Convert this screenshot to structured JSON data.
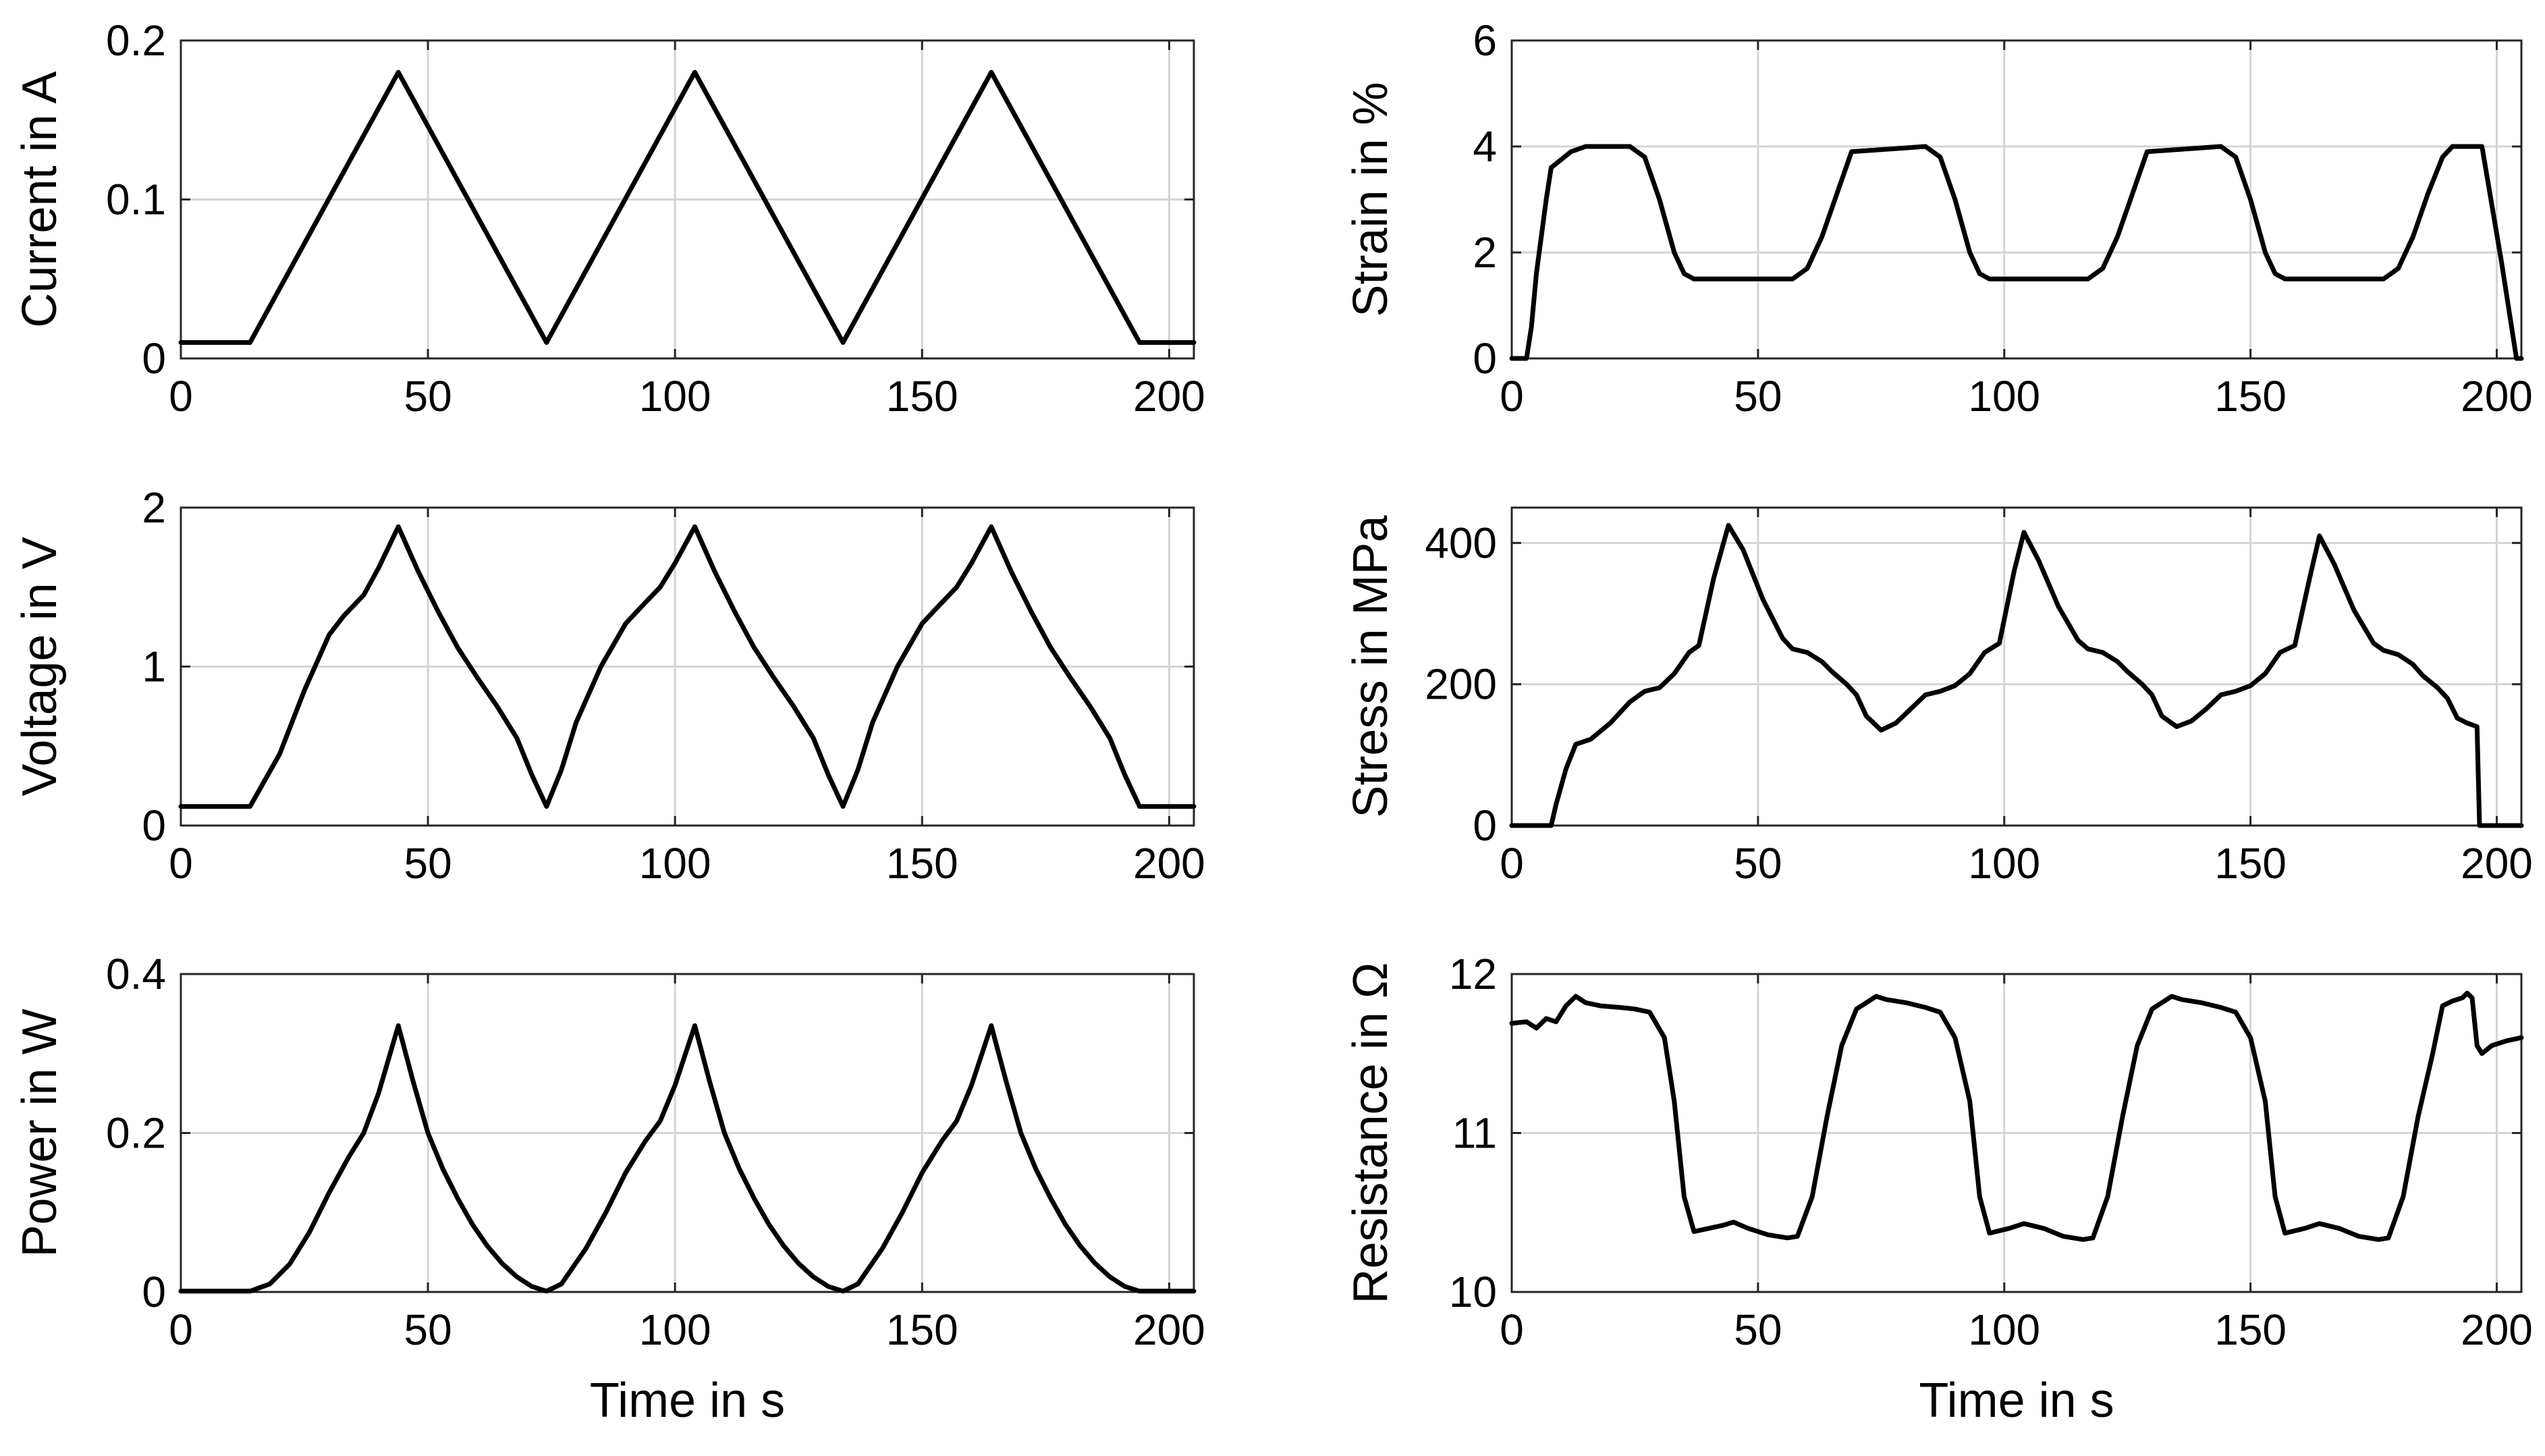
{
  "chart_data": [
    {
      "type": "line",
      "xlabel": "",
      "ylabel": "Current in A",
      "xlim": [
        0,
        205
      ],
      "ylim": [
        0,
        0.2
      ],
      "xticks": [
        0,
        50,
        100,
        150,
        200
      ],
      "yticks": [
        0,
        0.1,
        0.2
      ],
      "xtick_labels": [
        "0",
        "50",
        "100",
        "150",
        "200"
      ],
      "ytick_labels": [
        "0",
        "0.1",
        "0.2"
      ],
      "grid": true,
      "series": [
        {
          "name": "Current",
          "x": [
            0,
            14,
            44,
            74,
            104,
            134,
            164,
            194,
            205
          ],
          "y": [
            0.01,
            0.01,
            0.18,
            0.01,
            0.18,
            0.01,
            0.18,
            0.01,
            0.01
          ]
        }
      ]
    },
    {
      "type": "line",
      "xlabel": "",
      "ylabel": "Strain in %",
      "xlim": [
        0,
        205
      ],
      "ylim": [
        0,
        6
      ],
      "xticks": [
        0,
        50,
        100,
        150,
        200
      ],
      "yticks": [
        0,
        2,
        4,
        6
      ],
      "xtick_labels": [
        "0",
        "50",
        "100",
        "150",
        "200"
      ],
      "ytick_labels": [
        "0",
        "2",
        "4",
        "6"
      ],
      "grid": true,
      "series": [
        {
          "name": "Strain",
          "x": [
            0,
            3,
            4,
            5,
            7,
            8,
            12,
            15,
            24,
            27,
            30,
            33,
            35,
            37,
            57,
            60,
            63,
            66,
            69,
            84,
            87,
            90,
            93,
            95,
            97,
            117,
            120,
            123,
            126,
            129,
            144,
            147,
            150,
            153,
            155,
            157,
            177,
            180,
            183,
            186,
            189,
            191,
            195,
            197,
            201,
            204,
            205
          ],
          "y": [
            0,
            0,
            0.6,
            1.6,
            3.0,
            3.6,
            3.9,
            4.0,
            4.0,
            3.8,
            3.0,
            2.0,
            1.6,
            1.5,
            1.5,
            1.7,
            2.3,
            3.1,
            3.9,
            4.0,
            3.8,
            3.0,
            2.0,
            1.6,
            1.5,
            1.5,
            1.7,
            2.3,
            3.1,
            3.9,
            4.0,
            3.8,
            3.0,
            2.0,
            1.6,
            1.5,
            1.5,
            1.7,
            2.3,
            3.1,
            3.8,
            4.0,
            4.0,
            4.0,
            1.8,
            0,
            0
          ]
        }
      ]
    },
    {
      "type": "line",
      "xlabel": "",
      "ylabel": "Voltage in V",
      "xlim": [
        0,
        205
      ],
      "ylim": [
        0,
        2
      ],
      "xticks": [
        0,
        50,
        100,
        150,
        200
      ],
      "yticks": [
        0,
        1,
        2
      ],
      "xtick_labels": [
        "0",
        "50",
        "100",
        "150",
        "200"
      ],
      "ytick_labels": [
        "0",
        "1",
        "2"
      ],
      "grid": true,
      "series": [
        {
          "name": "Voltage",
          "x": [
            0,
            14,
            20,
            25,
            30,
            33,
            37,
            40,
            44,
            48,
            52,
            56,
            60,
            64,
            68,
            71,
            74,
            77,
            80,
            85,
            90,
            93,
            97,
            100,
            104,
            108,
            112,
            116,
            120,
            124,
            128,
            131,
            134,
            137,
            140,
            145,
            150,
            153,
            157,
            160,
            164,
            168,
            172,
            176,
            180,
            184,
            188,
            191,
            194,
            205
          ],
          "y": [
            0.12,
            0.12,
            0.45,
            0.85,
            1.2,
            1.32,
            1.45,
            1.62,
            1.88,
            1.6,
            1.35,
            1.12,
            0.93,
            0.75,
            0.55,
            0.32,
            0.12,
            0.35,
            0.65,
            1.0,
            1.27,
            1.37,
            1.5,
            1.65,
            1.88,
            1.6,
            1.35,
            1.12,
            0.93,
            0.75,
            0.55,
            0.32,
            0.12,
            0.35,
            0.65,
            1.0,
            1.27,
            1.37,
            1.5,
            1.65,
            1.88,
            1.6,
            1.35,
            1.12,
            0.93,
            0.75,
            0.55,
            0.32,
            0.12,
            0.12
          ]
        }
      ]
    },
    {
      "type": "line",
      "xlabel": "",
      "ylabel": "Stress in MPa",
      "xlim": [
        0,
        205
      ],
      "ylim": [
        0,
        450
      ],
      "xticks": [
        0,
        50,
        100,
        150,
        200
      ],
      "yticks": [
        0,
        200,
        400
      ],
      "xtick_labels": [
        "0",
        "50",
        "100",
        "150",
        "200"
      ],
      "ytick_labels": [
        "0",
        "200",
        "400"
      ],
      "grid": true,
      "series": [
        {
          "name": "Stress",
          "x": [
            0,
            8,
            9,
            11,
            13,
            16,
            20,
            24,
            27,
            30,
            33,
            36,
            38,
            41,
            44,
            47,
            51,
            55,
            57,
            60,
            63,
            65,
            68,
            70,
            72,
            75,
            78,
            81,
            84,
            87,
            90,
            93,
            96,
            99,
            102,
            104,
            107,
            111,
            115,
            117,
            120,
            123,
            125,
            128,
            130,
            132,
            135,
            138,
            141,
            144,
            147,
            150,
            153,
            156,
            159,
            162,
            164,
            167,
            171,
            175,
            177,
            180,
            183,
            185,
            188,
            190,
            192,
            194,
            196,
            196.5,
            205
          ],
          "y": [
            0,
            0,
            30,
            80,
            115,
            122,
            145,
            175,
            190,
            195,
            215,
            245,
            255,
            350,
            425,
            390,
            320,
            265,
            250,
            245,
            232,
            218,
            200,
            185,
            155,
            135,
            145,
            165,
            185,
            190,
            198,
            215,
            245,
            258,
            360,
            415,
            375,
            310,
            262,
            250,
            245,
            232,
            218,
            200,
            185,
            155,
            140,
            148,
            165,
            185,
            190,
            198,
            215,
            245,
            255,
            350,
            410,
            370,
            305,
            258,
            248,
            242,
            228,
            212,
            195,
            180,
            152,
            145,
            140,
            0,
            0
          ]
        }
      ]
    },
    {
      "type": "line",
      "xlabel": "Time in s",
      "ylabel": "Power in W",
      "xlim": [
        0,
        205
      ],
      "ylim": [
        0,
        0.4
      ],
      "xticks": [
        0,
        50,
        100,
        150,
        200
      ],
      "yticks": [
        0,
        0.2,
        0.4
      ],
      "xtick_labels": [
        "0",
        "50",
        "100",
        "150",
        "200"
      ],
      "ytick_labels": [
        "0",
        "0.2",
        "0.4"
      ],
      "grid": true,
      "series": [
        {
          "name": "Power",
          "x": [
            0,
            14,
            18,
            22,
            26,
            30,
            34,
            37,
            40,
            44,
            47,
            50,
            53,
            56,
            59,
            62,
            65,
            68,
            71,
            74,
            77,
            82,
            86,
            90,
            94,
            97,
            100,
            104,
            107,
            110,
            113,
            116,
            119,
            122,
            125,
            128,
            131,
            134,
            137,
            142,
            146,
            150,
            154,
            157,
            160,
            164,
            167,
            170,
            173,
            176,
            179,
            182,
            185,
            188,
            191,
            194,
            205
          ],
          "y": [
            0.001,
            0.001,
            0.01,
            0.035,
            0.075,
            0.125,
            0.17,
            0.2,
            0.25,
            0.335,
            0.265,
            0.2,
            0.155,
            0.118,
            0.085,
            0.058,
            0.036,
            0.019,
            0.007,
            0.001,
            0.01,
            0.055,
            0.1,
            0.15,
            0.19,
            0.215,
            0.26,
            0.335,
            0.265,
            0.2,
            0.155,
            0.118,
            0.085,
            0.058,
            0.036,
            0.019,
            0.007,
            0.001,
            0.01,
            0.055,
            0.1,
            0.15,
            0.19,
            0.215,
            0.26,
            0.335,
            0.265,
            0.2,
            0.155,
            0.118,
            0.085,
            0.058,
            0.036,
            0.019,
            0.007,
            0.001,
            0.001
          ]
        }
      ]
    },
    {
      "type": "line",
      "xlabel": "Time in s",
      "ylabel": "Resistance in Ω",
      "xlim": [
        0,
        205
      ],
      "ylim": [
        10,
        12
      ],
      "xticks": [
        0,
        50,
        100,
        150,
        200
      ],
      "yticks": [
        10,
        11,
        12
      ],
      "xtick_labels": [
        "0",
        "50",
        "100",
        "150",
        "200"
      ],
      "ytick_labels": [
        "10",
        "11",
        "12"
      ],
      "grid": true,
      "series": [
        {
          "name": "Resistance",
          "x": [
            0,
            3,
            5,
            7,
            9,
            11,
            13,
            15,
            18,
            22,
            25,
            28,
            31,
            33,
            35,
            37,
            40,
            43,
            45,
            48,
            52,
            56,
            58,
            61,
            64,
            67,
            70,
            72,
            74,
            76,
            80,
            84,
            87,
            90,
            93,
            95,
            97,
            101,
            104,
            108,
            112,
            116,
            118,
            121,
            124,
            127,
            130,
            132,
            134,
            136,
            140,
            144,
            147,
            150,
            153,
            155,
            157,
            161,
            164,
            168,
            172,
            176,
            178,
            181,
            184,
            187,
            189,
            191,
            193,
            194,
            195,
            196,
            197,
            199,
            202,
            205
          ],
          "y": [
            11.69,
            11.7,
            11.66,
            11.72,
            11.7,
            11.8,
            11.86,
            11.82,
            11.8,
            11.79,
            11.78,
            11.76,
            11.6,
            11.2,
            10.6,
            10.38,
            10.4,
            10.42,
            10.44,
            10.4,
            10.36,
            10.34,
            10.35,
            10.6,
            11.1,
            11.55,
            11.78,
            11.82,
            11.86,
            11.84,
            11.82,
            11.79,
            11.76,
            11.6,
            11.2,
            10.6,
            10.37,
            10.4,
            10.43,
            10.4,
            10.35,
            10.33,
            10.34,
            10.6,
            11.1,
            11.55,
            11.78,
            11.82,
            11.86,
            11.84,
            11.82,
            11.79,
            11.76,
            11.6,
            11.2,
            10.6,
            10.37,
            10.4,
            10.43,
            10.4,
            10.35,
            10.33,
            10.34,
            10.6,
            11.1,
            11.5,
            11.8,
            11.83,
            11.85,
            11.88,
            11.85,
            11.55,
            11.5,
            11.55,
            11.58,
            11.6
          ]
        }
      ]
    }
  ]
}
